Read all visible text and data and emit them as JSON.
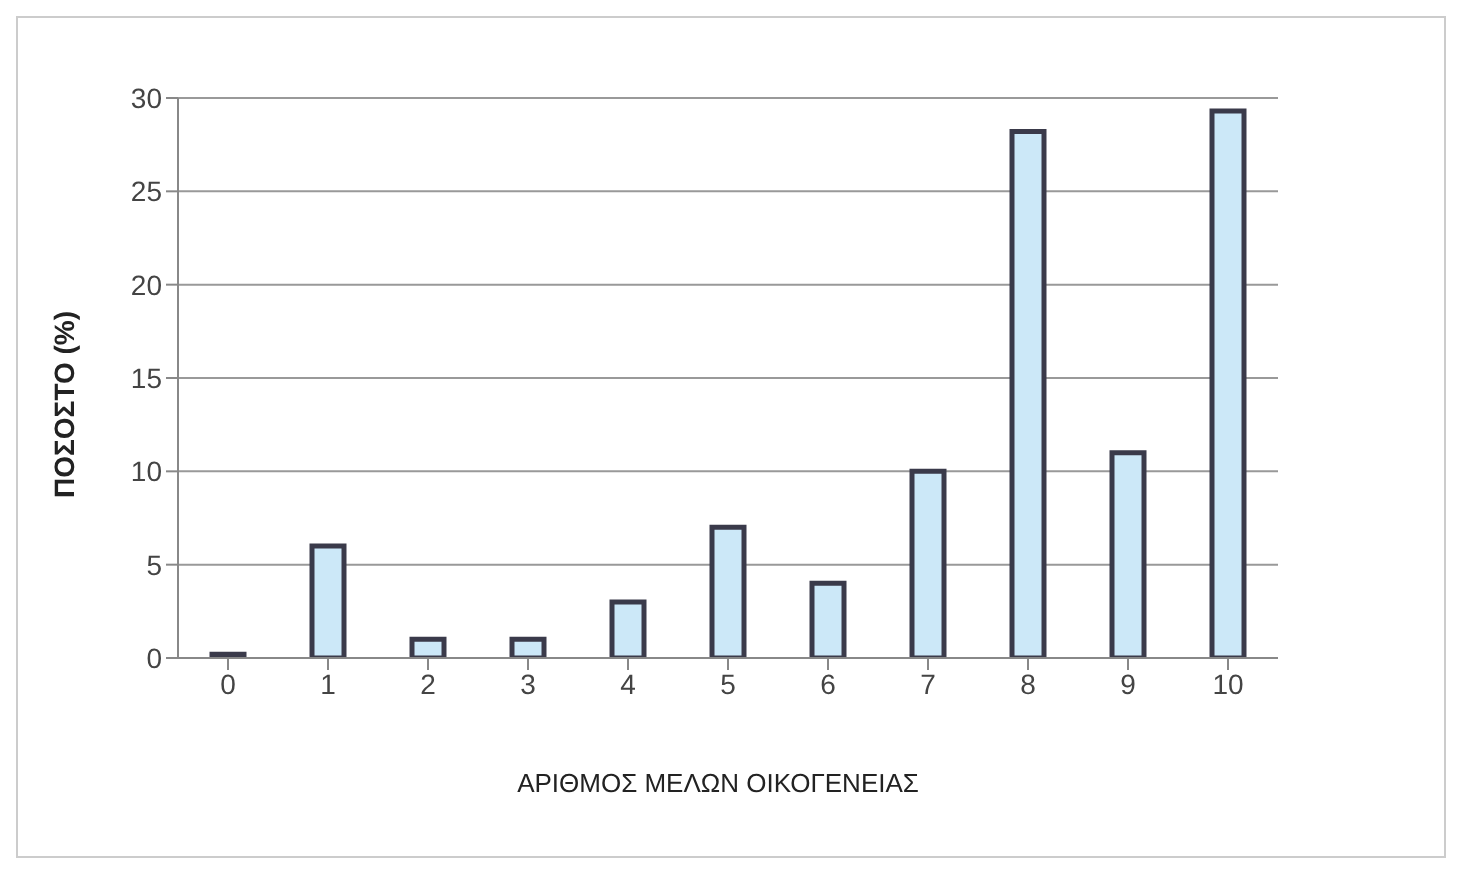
{
  "chart_data": {
    "type": "bar",
    "xlabel": "ΑΡΙΘΜΟΣ ΜΕΛΩΝ ΟΙΚΟΓΕΝΕΙΑΣ",
    "ylabel": "ΠΟΣΟΣΤΟ (%)",
    "categories": [
      "0",
      "1",
      "2",
      "3",
      "4",
      "5",
      "6",
      "7",
      "8",
      "9",
      "10"
    ],
    "values": [
      0.2,
      6,
      1,
      1,
      3,
      7,
      4,
      10,
      28.2,
      11,
      29.3
    ],
    "color": "#cce8f8",
    "ylim": [
      0,
      30
    ],
    "yticks": [
      0,
      5,
      10,
      15,
      20,
      25,
      30
    ],
    "grid": "y"
  }
}
